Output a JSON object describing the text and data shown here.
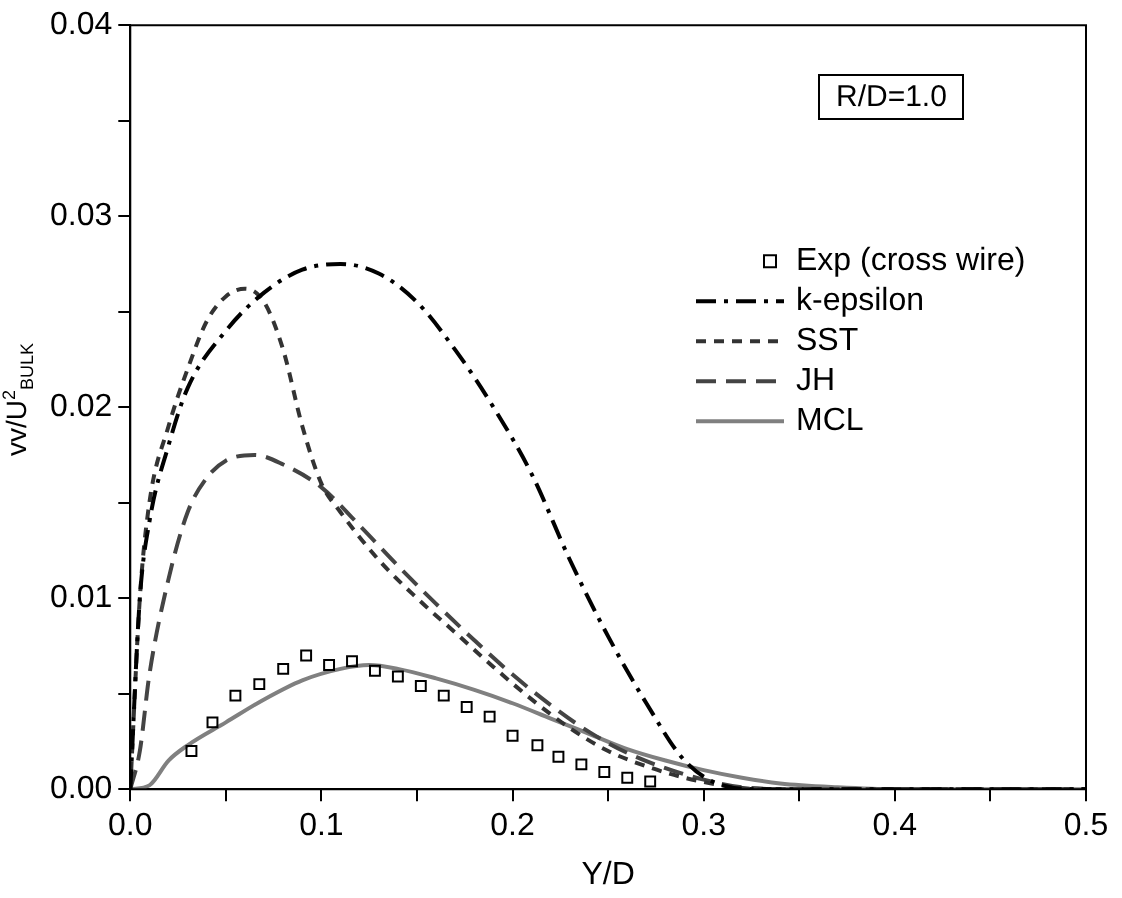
{
  "chart_data": {
    "type": "line",
    "xlabel": "Y/D",
    "ylabel": "vv/U$^{2}$$_{BULK}$",
    "annotations": [
      "R/D=1.0"
    ],
    "xlim": [
      0,
      0.5
    ],
    "ylim": [
      0,
      0.04
    ],
    "xticks": [
      {
        "value": 0,
        "label": "0.0"
      },
      {
        "value": 0.05,
        "label": null
      },
      {
        "value": 0.1,
        "label": "0.1"
      },
      {
        "value": 0.15,
        "label": null
      },
      {
        "value": 0.2,
        "label": "0.2"
      },
      {
        "value": 0.25,
        "label": null
      },
      {
        "value": 0.3,
        "label": "0.3"
      },
      {
        "value": 0.35,
        "label": null
      },
      {
        "value": 0.4,
        "label": "0.4"
      },
      {
        "value": 0.45,
        "label": null
      },
      {
        "value": 0.5,
        "label": "0.5"
      }
    ],
    "yticks": [
      {
        "value": 0,
        "label": "0.00"
      },
      {
        "value": 0.005,
        "label": null
      },
      {
        "value": 0.01,
        "label": "0.01"
      },
      {
        "value": 0.015,
        "label": null
      },
      {
        "value": 0.02,
        "label": "0.02"
      },
      {
        "value": 0.025,
        "label": null
      },
      {
        "value": 0.03,
        "label": "0.03"
      },
      {
        "value": 0.035,
        "label": null
      },
      {
        "value": 0.04,
        "label": "0.04"
      }
    ],
    "grid": false,
    "legend": "right",
    "series": [
      {
        "name": "Exp (cross wire)",
        "type": "scatter",
        "marker": "square",
        "color": "#000000",
        "x": [
          0.032,
          0.043,
          0.055,
          0.0675,
          0.08,
          0.092,
          0.104,
          0.116,
          0.128,
          0.14,
          0.152,
          0.164,
          0.176,
          0.188,
          0.2,
          0.213,
          0.224,
          0.236,
          0.248,
          0.26,
          0.272
        ],
        "values": [
          0.002,
          0.0035,
          0.0049,
          0.0055,
          0.0063,
          0.007,
          0.0065,
          0.0067,
          0.0062,
          0.0059,
          0.0054,
          0.0049,
          0.0043,
          0.0038,
          0.0028,
          0.0023,
          0.0017,
          0.0013,
          0.0009,
          0.0006,
          0.0004
        ]
      },
      {
        "name": "k-epsilon",
        "line_style": "dashdot",
        "color": "#000000",
        "x": [
          0,
          0.005,
          0.01,
          0.02,
          0.03,
          0.05,
          0.07,
          0.09,
          0.11,
          0.13,
          0.15,
          0.17,
          0.19,
          0.21,
          0.23,
          0.25,
          0.27,
          0.29,
          0.31,
          0.33,
          0.5
        ],
        "values": [
          0,
          0.01,
          0.014,
          0.018,
          0.021,
          0.024,
          0.026,
          0.0272,
          0.0275,
          0.027,
          0.0255,
          0.023,
          0.02,
          0.0165,
          0.012,
          0.008,
          0.0045,
          0.0015,
          0.0002,
          0,
          0
        ]
      },
      {
        "name": "SST",
        "line_style": "dotted",
        "color": "#333333",
        "x": [
          0,
          0.005,
          0.01,
          0.02,
          0.03,
          0.04,
          0.05,
          0.06,
          0.07,
          0.08,
          0.09,
          0.1,
          0.11,
          0.13,
          0.15,
          0.17,
          0.19,
          0.21,
          0.23,
          0.25,
          0.27,
          0.29,
          0.31,
          0.33,
          0.5
        ],
        "values": [
          0,
          0.01,
          0.015,
          0.019,
          0.022,
          0.0245,
          0.0258,
          0.0262,
          0.0255,
          0.023,
          0.019,
          0.016,
          0.0145,
          0.012,
          0.01,
          0.0082,
          0.0064,
          0.0047,
          0.0032,
          0.002,
          0.0012,
          0.0006,
          0.0002,
          0,
          0
        ]
      },
      {
        "name": "JH",
        "line_style": "dashed",
        "color": "#444444",
        "x": [
          0,
          0.005,
          0.01,
          0.02,
          0.03,
          0.04,
          0.05,
          0.065,
          0.08,
          0.1,
          0.12,
          0.14,
          0.16,
          0.18,
          0.2,
          0.22,
          0.24,
          0.26,
          0.28,
          0.3,
          0.32,
          0.35,
          0.5
        ],
        "values": [
          0,
          0.002,
          0.006,
          0.011,
          0.0145,
          0.0163,
          0.0172,
          0.0175,
          0.017,
          0.0158,
          0.0138,
          0.0117,
          0.0097,
          0.0078,
          0.006,
          0.0044,
          0.003,
          0.0019,
          0.0011,
          0.0005,
          0.0001,
          0,
          0
        ]
      },
      {
        "name": "MCL",
        "line_style": "solid",
        "color": "#808080",
        "x": [
          0,
          0.01,
          0.02,
          0.03,
          0.05,
          0.07,
          0.09,
          0.11,
          0.125,
          0.14,
          0.16,
          0.18,
          0.2,
          0.22,
          0.24,
          0.26,
          0.28,
          0.3,
          0.32,
          0.34,
          0.37,
          0.4,
          0.5
        ],
        "values": [
          0,
          0.0002,
          0.0015,
          0.0023,
          0.0035,
          0.0047,
          0.0057,
          0.0063,
          0.0065,
          0.0063,
          0.0058,
          0.0052,
          0.0045,
          0.0037,
          0.0029,
          0.0021,
          0.0015,
          0.001,
          0.0006,
          0.0003,
          0.0001,
          0,
          0
        ]
      }
    ]
  }
}
